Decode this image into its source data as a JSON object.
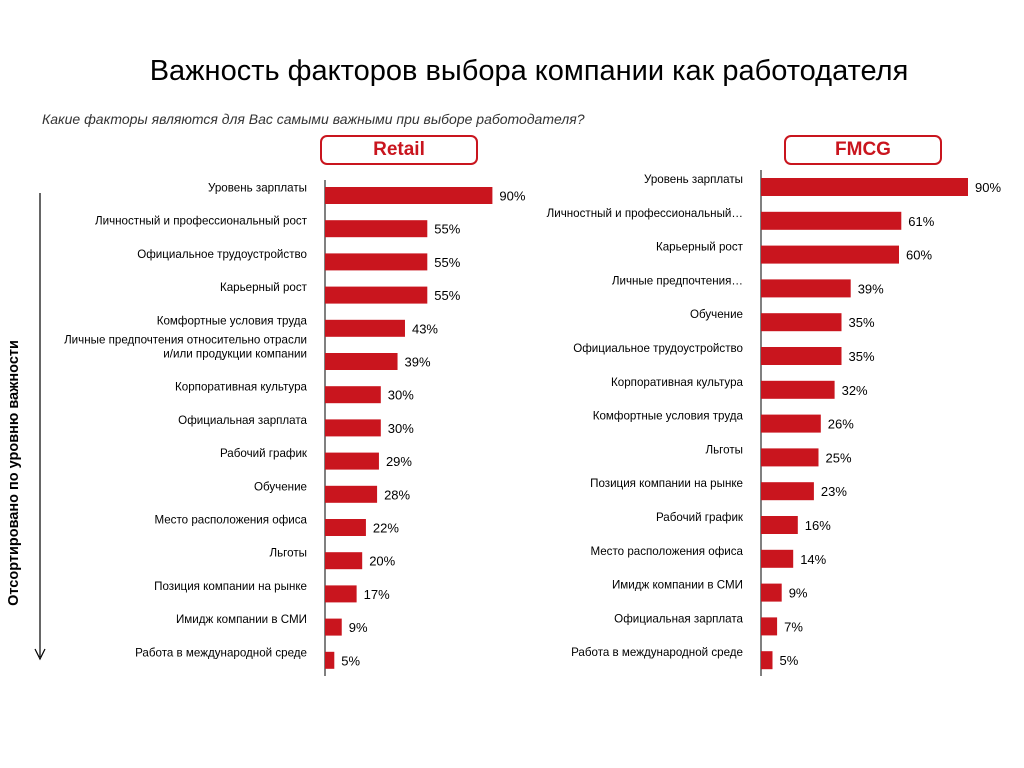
{
  "title": "Важность факторов выбора компании как работодателя",
  "subtitle": "Какие факторы являются для Вас самыми важными при выборе работодателя?",
  "side_label": "Отсортировано по уровню важности",
  "colors": {
    "bar": "#c9151e",
    "tag_border": "#c9151e"
  },
  "chart_data": [
    {
      "type": "bar",
      "orientation": "horizontal",
      "label": "Retail",
      "unit": "%",
      "xlim": [
        0,
        100
      ],
      "categories": [
        "Уровень зарплаты",
        "Личностный и профессиональный рост",
        "Официальное трудоустройство",
        "Карьерный рост",
        "Комфортные условия труда",
        "Личные предпочтения относительно  отрасли и/или продукции компании",
        "Корпоративная культура",
        "Официальная зарплата",
        "Рабочий график",
        "Обучение",
        "Место расположения офиса",
        "Льготы",
        "Позиция компании на рынке",
        "Имидж компании в СМИ",
        "Работа в международной среде"
      ],
      "values": [
        90,
        55,
        55,
        55,
        43,
        39,
        30,
        30,
        29,
        28,
        22,
        20,
        17,
        9,
        5
      ]
    },
    {
      "type": "bar",
      "orientation": "horizontal",
      "label": "FMCG",
      "unit": "%",
      "xlim": [
        0,
        100
      ],
      "categories": [
        "Уровень зарплаты",
        "Личностный и профессиональный…",
        "Карьерный рост",
        "Личные предпочтения…",
        "Обучение",
        "Официальное трудоустройство",
        "Корпоративная культура",
        "Комфортные условия труда",
        "Льготы",
        "Позиция компании на рынке",
        "Рабочий график",
        "Место расположения офиса",
        "Имидж компании в СМИ",
        "Официальная зарплата",
        "Работа в международной среде"
      ],
      "values": [
        90,
        61,
        60,
        39,
        35,
        35,
        32,
        26,
        25,
        23,
        16,
        14,
        9,
        7,
        5
      ]
    }
  ]
}
